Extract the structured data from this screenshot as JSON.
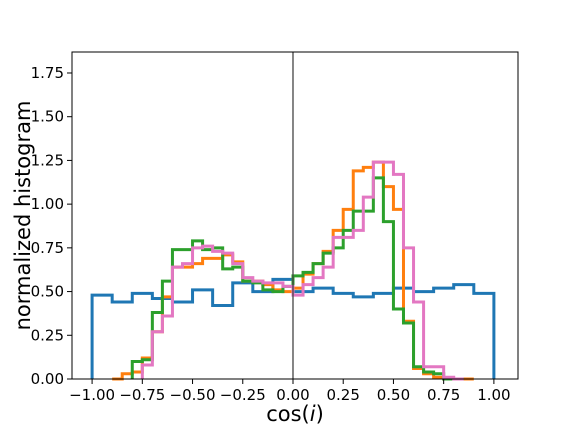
{
  "chart_data": {
    "type": "step-histogram",
    "xlabel": "cos(i)",
    "ylabel": "normalized histogram",
    "xlim": [
      -1.1,
      1.12
    ],
    "ylim": [
      0,
      1.87
    ],
    "xticks": [
      "-1.00",
      "-0.75",
      "-0.50",
      "-0.25",
      "0.00",
      "0.25",
      "0.50",
      "0.75",
      "1.00"
    ],
    "yticks": [
      "0.00",
      "0.25",
      "0.50",
      "0.75",
      "1.00",
      "1.25",
      "1.50",
      "1.75"
    ],
    "vline_x": 0,
    "grid": false,
    "legend": false,
    "bin_edges": [
      -1.0,
      -0.9,
      -0.8,
      -0.7,
      -0.6,
      -0.5,
      -0.4,
      -0.3,
      -0.2,
      -0.1,
      0.0,
      0.1,
      0.2,
      0.3,
      0.4,
      0.5,
      0.6,
      0.7,
      0.8,
      0.9,
      1.0
    ],
    "series": [
      {
        "color": "#1f77b4",
        "edges": [
          -1.0,
          -0.9,
          -0.8,
          -0.7,
          -0.6,
          -0.5,
          -0.4,
          -0.3,
          -0.2,
          -0.1,
          0.0,
          0.1,
          0.2,
          0.3,
          0.4,
          0.5,
          0.6,
          0.7,
          0.8,
          0.9,
          1.0
        ],
        "values": [
          0.48,
          0.44,
          0.49,
          0.46,
          0.44,
          0.51,
          0.42,
          0.55,
          0.5,
          0.57,
          0.5,
          0.52,
          0.49,
          0.47,
          0.49,
          0.52,
          0.5,
          0.52,
          0.54,
          0.49
        ]
      },
      {
        "color": "#ff7f0e",
        "edges": [
          -0.9,
          -0.85,
          -0.8,
          -0.75,
          -0.7,
          -0.65,
          -0.6,
          -0.55,
          -0.5,
          -0.45,
          -0.4,
          -0.35,
          -0.3,
          -0.25,
          -0.2,
          -0.15,
          -0.1,
          -0.05,
          0.0,
          0.05,
          0.1,
          0.15,
          0.2,
          0.25,
          0.3,
          0.35,
          0.4,
          0.45,
          0.5,
          0.55,
          0.6,
          0.65,
          0.7,
          0.75,
          0.8,
          0.85,
          0.9
        ],
        "values": [
          0.0,
          0.03,
          0.04,
          0.12,
          0.27,
          0.47,
          0.64,
          0.64,
          0.66,
          0.69,
          0.69,
          0.71,
          0.67,
          0.56,
          0.56,
          0.54,
          0.51,
          0.5,
          0.52,
          0.6,
          0.66,
          0.73,
          0.85,
          0.97,
          1.19,
          1.21,
          1.24,
          1.1,
          0.97,
          0.33,
          0.06,
          0.03,
          0.01,
          0.0,
          0.0,
          0.0
        ]
      },
      {
        "color": "#2ca02c",
        "edges": [
          -0.8,
          -0.75,
          -0.7,
          -0.65,
          -0.6,
          -0.55,
          -0.5,
          -0.45,
          -0.4,
          -0.35,
          -0.3,
          -0.25,
          -0.2,
          -0.15,
          -0.1,
          -0.05,
          0.0,
          0.05,
          0.1,
          0.15,
          0.2,
          0.25,
          0.3,
          0.35,
          0.4,
          0.45,
          0.5,
          0.55,
          0.6,
          0.65,
          0.7,
          0.75,
          0.8,
          0.85
        ],
        "values": [
          0.1,
          0.11,
          0.38,
          0.56,
          0.74,
          0.74,
          0.79,
          0.74,
          0.75,
          0.63,
          0.64,
          0.56,
          0.55,
          0.51,
          0.5,
          0.53,
          0.59,
          0.61,
          0.66,
          0.72,
          0.75,
          0.85,
          0.96,
          0.96,
          1.15,
          0.9,
          0.4,
          0.32,
          0.07,
          0.04,
          0.03,
          0.0,
          0.0
        ]
      },
      {
        "color": "#e377c2",
        "edges": [
          -0.75,
          -0.7,
          -0.65,
          -0.6,
          -0.55,
          -0.5,
          -0.45,
          -0.4,
          -0.35,
          -0.3,
          -0.25,
          -0.2,
          -0.15,
          -0.1,
          -0.05,
          0.0,
          0.05,
          0.1,
          0.15,
          0.2,
          0.25,
          0.3,
          0.35,
          0.4,
          0.45,
          0.5,
          0.55,
          0.6,
          0.65,
          0.7,
          0.75,
          0.8,
          0.85
        ],
        "values": [
          0.08,
          0.27,
          0.36,
          0.64,
          0.66,
          0.75,
          0.76,
          0.73,
          0.72,
          0.66,
          0.58,
          0.56,
          0.55,
          0.55,
          0.53,
          0.48,
          0.54,
          0.58,
          0.64,
          0.81,
          0.81,
          0.85,
          1.04,
          1.24,
          1.24,
          1.17,
          0.75,
          0.44,
          0.07,
          0.07,
          0.01,
          0.0
        ]
      }
    ]
  }
}
